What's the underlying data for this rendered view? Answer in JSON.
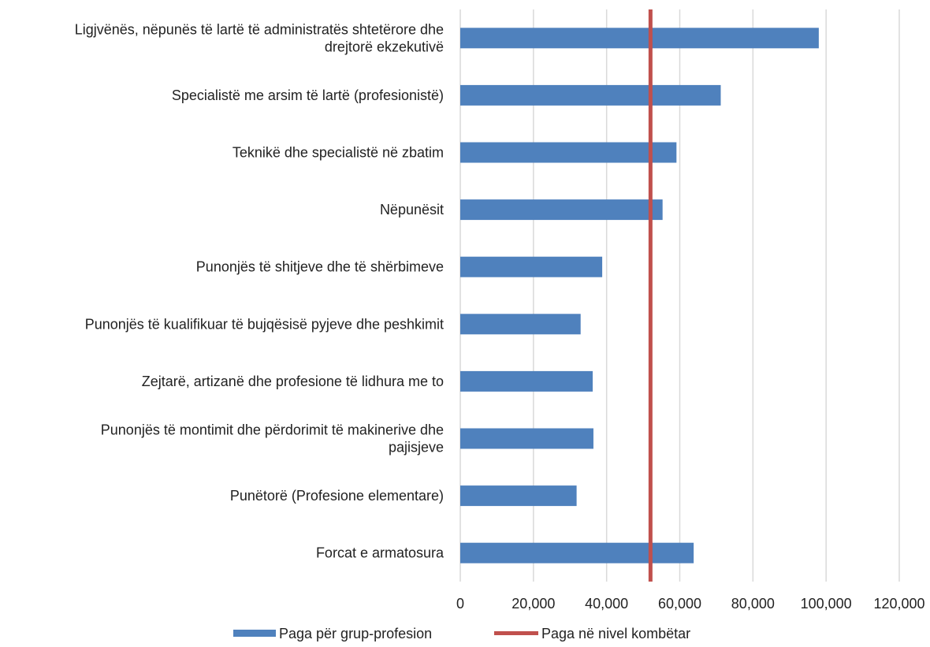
{
  "chart_data": {
    "type": "bar",
    "orientation": "horizontal",
    "categories": [
      "Ligjvënës, nëpunës të lartë të administratës shtetërore dhe drejtorë ekzekutivë",
      "Specialistë me arsim të lartë (profesionistë)",
      "Teknikë dhe specialistë në zbatim",
      "Nëpunësit",
      "Punonjës të shitjeve dhe të shërbimeve",
      "Punonjës të kualifikuar të bujqësisë pyjeve dhe peshkimit",
      "Zejtarë, artizanë dhe profesione të lidhura me to",
      "Punonjës të montimit dhe përdorimit të makinerive dhe pajisjeve",
      "Punëtorë (Profesione elementare)",
      "Forcat e armatosura"
    ],
    "category_lines": [
      [
        "Ligjvënës, nëpunës të lartë të administratës shtetërore dhe",
        "drejtorë ekzekutivë"
      ],
      [
        "Specialistë me arsim të lartë (profesionistë)"
      ],
      [
        "Teknikë dhe specialistë në zbatim"
      ],
      [
        "Nëpunësit"
      ],
      [
        "Punonjës të shitjeve dhe të shërbimeve"
      ],
      [
        "Punonjës të kualifikuar të bujqësisë pyjeve dhe peshkimit"
      ],
      [
        "Zejtarë, artizanë dhe profesione të lidhura me to"
      ],
      [
        "Punonjës të montimit dhe përdorimit të makinerive dhe",
        "pajisjeve"
      ],
      [
        "Punëtorë (Profesione elementare)"
      ],
      [
        "Forcat e armatosura"
      ]
    ],
    "series": [
      {
        "name": "Paga për grup-profesion",
        "color": "#4f81bd",
        "values": [
          98000,
          71200,
          59100,
          55300,
          38800,
          32900,
          36200,
          36400,
          31800,
          63800
        ]
      }
    ],
    "reference_line": {
      "name": "Paga në nivel kombëtar",
      "color": "#c0504d",
      "value": 52000
    },
    "xlim": [
      0,
      120000
    ],
    "xticks": [
      0,
      20000,
      40000,
      60000,
      80000,
      100000,
      120000
    ],
    "xtick_labels": [
      "0",
      "20,000",
      "40,000",
      "60,000",
      "80,000",
      "100,000",
      "120,000"
    ],
    "grid": true,
    "grid_color": "#d9d9d9",
    "legend_position": "bottom",
    "title": "",
    "xlabel": "",
    "ylabel": ""
  }
}
